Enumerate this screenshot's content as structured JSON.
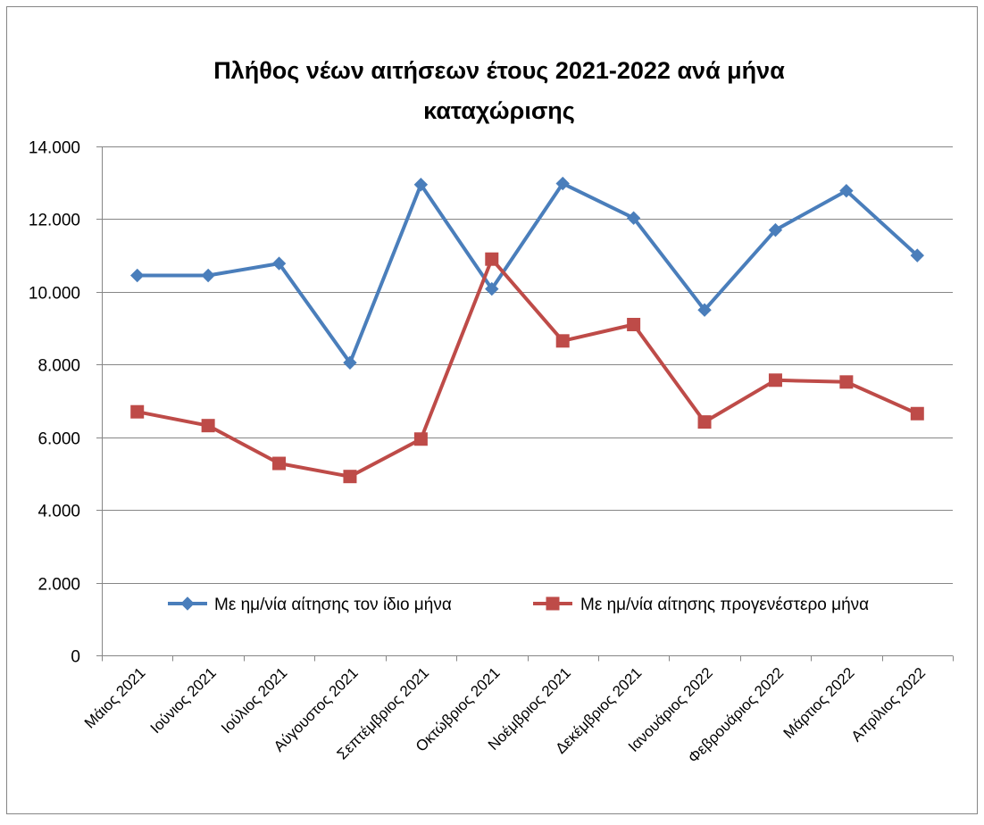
{
  "chart_data": {
    "type": "line",
    "title_line1": "Πλήθος νέων αιτήσεων έτους 2021-2022 ανά μήνα",
    "title_line2": "καταχώρισης",
    "xlabel": "",
    "ylabel": "",
    "categories": [
      "Μάιος 2021",
      "Ιούνιος 2021",
      "Ιούλιος 2021",
      "Αύγουστος 2021",
      "Σεπτέμβριος 2021",
      "Οκτώβριος 2021",
      "Νοέμβριος 2021",
      "Δεκέμβριος 2021",
      "Ιανουάριος 2022",
      "Φεβρουάριος 2022",
      "Μάρτιος 2022",
      "Απρίλιος 2022"
    ],
    "ylim": [
      0,
      14000
    ],
    "yticks": [
      0,
      2000,
      4000,
      6000,
      8000,
      10000,
      12000,
      14000
    ],
    "ytick_labels": [
      "0",
      "2.000",
      "4.000",
      "6.000",
      "8.000",
      "10.000",
      "12.000",
      "14.000"
    ],
    "grid": true,
    "legend_position": "bottom-inside",
    "series": [
      {
        "name": "Με ημ/νία αίτησης τον ίδιο μήνα",
        "color": "#4a7ebb",
        "marker": "diamond",
        "values": [
          10450,
          10450,
          10780,
          8050,
          12950,
          10080,
          12980,
          12030,
          9500,
          11700,
          12780,
          11000
        ]
      },
      {
        "name": "Με ημ/νία αίτησης προγενέστερο μήνα",
        "color": "#be4b48",
        "marker": "square",
        "values": [
          6700,
          6320,
          5280,
          4920,
          5950,
          10900,
          8650,
          9100,
          6420,
          7570,
          7520,
          6650
        ]
      }
    ]
  }
}
